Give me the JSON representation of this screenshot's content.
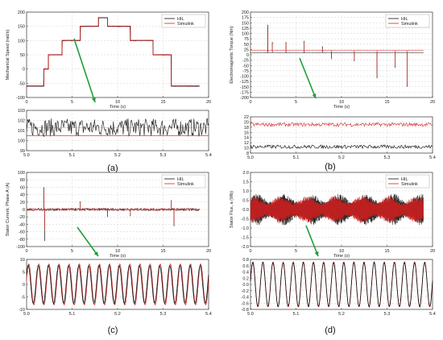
{
  "chart_data": [
    {
      "panel": "a",
      "type": "line",
      "caption": "(a)",
      "main": {
        "xlabel": "Time (s)",
        "ylabel": "Mechanical Speed (rad/s)",
        "xlim": [
          0,
          20
        ],
        "ylim": [
          -100,
          200
        ],
        "xticks": [
          "0",
          "5",
          "10",
          "15",
          "20"
        ],
        "yticks": [
          "200",
          "150",
          "100",
          "50",
          "0",
          "-50",
          "-100"
        ],
        "series": [
          {
            "name": "HIL",
            "color": "#111111",
            "x": [
              0,
              1.9,
              1.9,
              2.4,
              2.4,
              3.9,
              3.9,
              5.9,
              5.9,
              7.9,
              7.9,
              8.9,
              8.9,
              11.4,
              11.4,
              13.9,
              13.9,
              15.9,
              15.9,
              19
            ],
            "y": [
              -60,
              -60,
              0,
              0,
              50,
              50,
              100,
              100,
              150,
              150,
              180,
              180,
              150,
              150,
              100,
              100,
              50,
              50,
              -60,
              -60
            ]
          },
          {
            "name": "Simulink",
            "color": "#d32020",
            "x": [
              0,
              1.9,
              1.9,
              2.4,
              2.4,
              3.9,
              3.9,
              5.9,
              5.9,
              7.9,
              7.9,
              8.9,
              8.9,
              11.4,
              11.4,
              13.9,
              13.9,
              15.9,
              15.9,
              19
            ],
            "y": [
              -60,
              -60,
              0,
              0,
              50,
              50,
              100,
              100,
              150,
              150,
              180,
              180,
              150,
              150,
              100,
              100,
              50,
              50,
              -60,
              -60
            ]
          }
        ]
      },
      "zoom": {
        "xlim": [
          5.0,
          5.4
        ],
        "ylim": [
          99,
          103
        ],
        "xticks": [
          "5.0",
          "5.1",
          "5.2",
          "5.3",
          "5.4"
        ],
        "yticks": [
          "103",
          "102",
          "101",
          "100",
          "99"
        ],
        "series": [
          {
            "name": "HIL",
            "color": "#111111",
            "kind": "noise",
            "mean": 101.3,
            "amp": 0.9,
            "y_ref": 101.3
          },
          {
            "name": "Simulink",
            "color": "#d32020",
            "kind": "flat",
            "y_ref": 100.5
          }
        ]
      }
    },
    {
      "panel": "b",
      "type": "line",
      "caption": "(b)",
      "main": {
        "xlabel": "Time (s)",
        "ylabel": "Electromagnetic Torque (Nm)",
        "xlim": [
          0,
          20
        ],
        "ylim": [
          -200,
          200
        ],
        "xticks": [
          "0",
          "5",
          "10",
          "15",
          "20"
        ],
        "yticks": [
          "200",
          "175",
          "150",
          "125",
          "100",
          "75",
          "50",
          "25",
          "0",
          "-25",
          "-50",
          "-75",
          "-100",
          "-125",
          "-150",
          "-175",
          "-200"
        ],
        "series": [
          {
            "name": "HIL",
            "color": "#111111",
            "baseline": 10,
            "spikes": [
              [
                1.9,
                140
              ],
              [
                2.4,
                60
              ],
              [
                3.9,
                60
              ],
              [
                5.9,
                65
              ],
              [
                7.9,
                40
              ],
              [
                8.9,
                -20
              ],
              [
                11.4,
                -30
              ],
              [
                13.9,
                -110
              ],
              [
                15.9,
                -60
              ],
              [
                17.2,
                -150
              ]
            ]
          },
          {
            "name": "Simulink",
            "color": "#d32020",
            "baseline": 20,
            "spikes": [
              [
                1.9,
                120
              ],
              [
                2.4,
                50
              ],
              [
                3.9,
                50
              ],
              [
                5.9,
                55
              ],
              [
                7.9,
                30
              ],
              [
                8.9,
                -15
              ],
              [
                11.4,
                -25
              ],
              [
                13.9,
                -90
              ],
              [
                15.9,
                -50
              ],
              [
                17.2,
                -135
              ]
            ]
          }
        ]
      },
      "zoom": {
        "xlim": [
          5.0,
          5.4
        ],
        "ylim": [
          8,
          24
        ],
        "xticks": [
          "5.0",
          "5.1",
          "5.2",
          "5.3",
          "5.4"
        ],
        "yticks": [
          "22",
          "20",
          "18",
          "16",
          "14",
          "12",
          "10",
          "8"
        ],
        "series": [
          {
            "name": "Simulink",
            "color": "#d32020",
            "kind": "noise",
            "mean": 20.6,
            "amp": 0.8
          },
          {
            "name": "HIL",
            "color": "#111111",
            "kind": "noise",
            "mean": 10.8,
            "amp": 0.8
          }
        ]
      }
    },
    {
      "panel": "c",
      "type": "line",
      "caption": "(c)",
      "main": {
        "xlabel": "Time (s)",
        "ylabel": "Stator Current, Phase A (A)",
        "xlim": [
          0,
          20
        ],
        "ylim": [
          -100,
          100
        ],
        "xticks": [
          "0",
          "5",
          "10",
          "15",
          "20"
        ],
        "yticks": [
          "100",
          "80",
          "60",
          "40",
          "20",
          "0",
          "-20",
          "-40",
          "-60",
          "-80",
          "-100"
        ],
        "series": [
          {
            "name": "HIL",
            "color": "#111111",
            "band": 8,
            "spikes": [
              [
                1.9,
                60
              ],
              [
                2.0,
                -85
              ],
              [
                5.9,
                22
              ],
              [
                8.9,
                -20
              ],
              [
                11.4,
                -18
              ],
              [
                15.9,
                25
              ],
              [
                16.2,
                -45
              ]
            ]
          },
          {
            "name": "Simulink",
            "color": "#d32020",
            "band": 7,
            "spikes": [
              [
                1.9,
                45
              ],
              [
                2.0,
                -55
              ],
              [
                5.9,
                18
              ],
              [
                8.9,
                -15
              ],
              [
                11.4,
                -14
              ],
              [
                15.9,
                20
              ],
              [
                16.2,
                -35
              ]
            ]
          }
        ]
      },
      "zoom": {
        "xlim": [
          5.0,
          5.4
        ],
        "ylim": [
          -10,
          10
        ],
        "xticks": [
          "5.0",
          "5.1",
          "5.2",
          "5.3",
          "5.4"
        ],
        "yticks": [
          "10",
          "5",
          "0",
          "-5",
          "-10"
        ],
        "series": [
          {
            "name": "Simulink",
            "color": "#d32020",
            "kind": "sine",
            "amp": 8.2,
            "cycles": 18,
            "phase": 0.2
          },
          {
            "name": "HIL",
            "color": "#111111",
            "kind": "sine",
            "amp": 7.6,
            "cycles": 18,
            "phase": 0.55
          }
        ]
      }
    },
    {
      "panel": "d",
      "type": "line",
      "caption": "(d)",
      "main": {
        "xlabel": "Time (s)",
        "ylabel": "Stator Flux, a (Wb)",
        "xlim": [
          0,
          20
        ],
        "ylim": [
          -2.0,
          2.0
        ],
        "xticks": [
          "0",
          "5",
          "10",
          "15",
          "20"
        ],
        "yticks": [
          "2.0",
          "1.5",
          "1.0",
          "0.5",
          "0.0",
          "-0.5",
          "-1.0",
          "-1.5",
          "-2.0"
        ],
        "series": [
          {
            "name": "HIL",
            "color": "#111111",
            "band": 0.85
          },
          {
            "name": "Simulink",
            "color": "#d32020",
            "band": 0.75
          }
        ]
      },
      "zoom": {
        "xlim": [
          5.0,
          5.4
        ],
        "ylim": [
          -0.8,
          0.8
        ],
        "xticks": [
          "5.0",
          "5.1",
          "5.2",
          "5.3",
          "5.4"
        ],
        "yticks": [
          "0.8",
          "0.6",
          "0.4",
          "0.2",
          "0.0",
          "-0.2",
          "-0.4",
          "-0.6",
          "-0.8"
        ],
        "series": [
          {
            "name": "Simulink",
            "color": "#d32020",
            "kind": "sine",
            "amp": 0.72,
            "cycles": 18,
            "phase": 0.1
          },
          {
            "name": "HIL",
            "color": "#111111",
            "kind": "sine",
            "amp": 0.7,
            "cycles": 18,
            "phase": 0.18
          }
        ]
      }
    }
  ],
  "arrow_color": "#1f9e3a"
}
